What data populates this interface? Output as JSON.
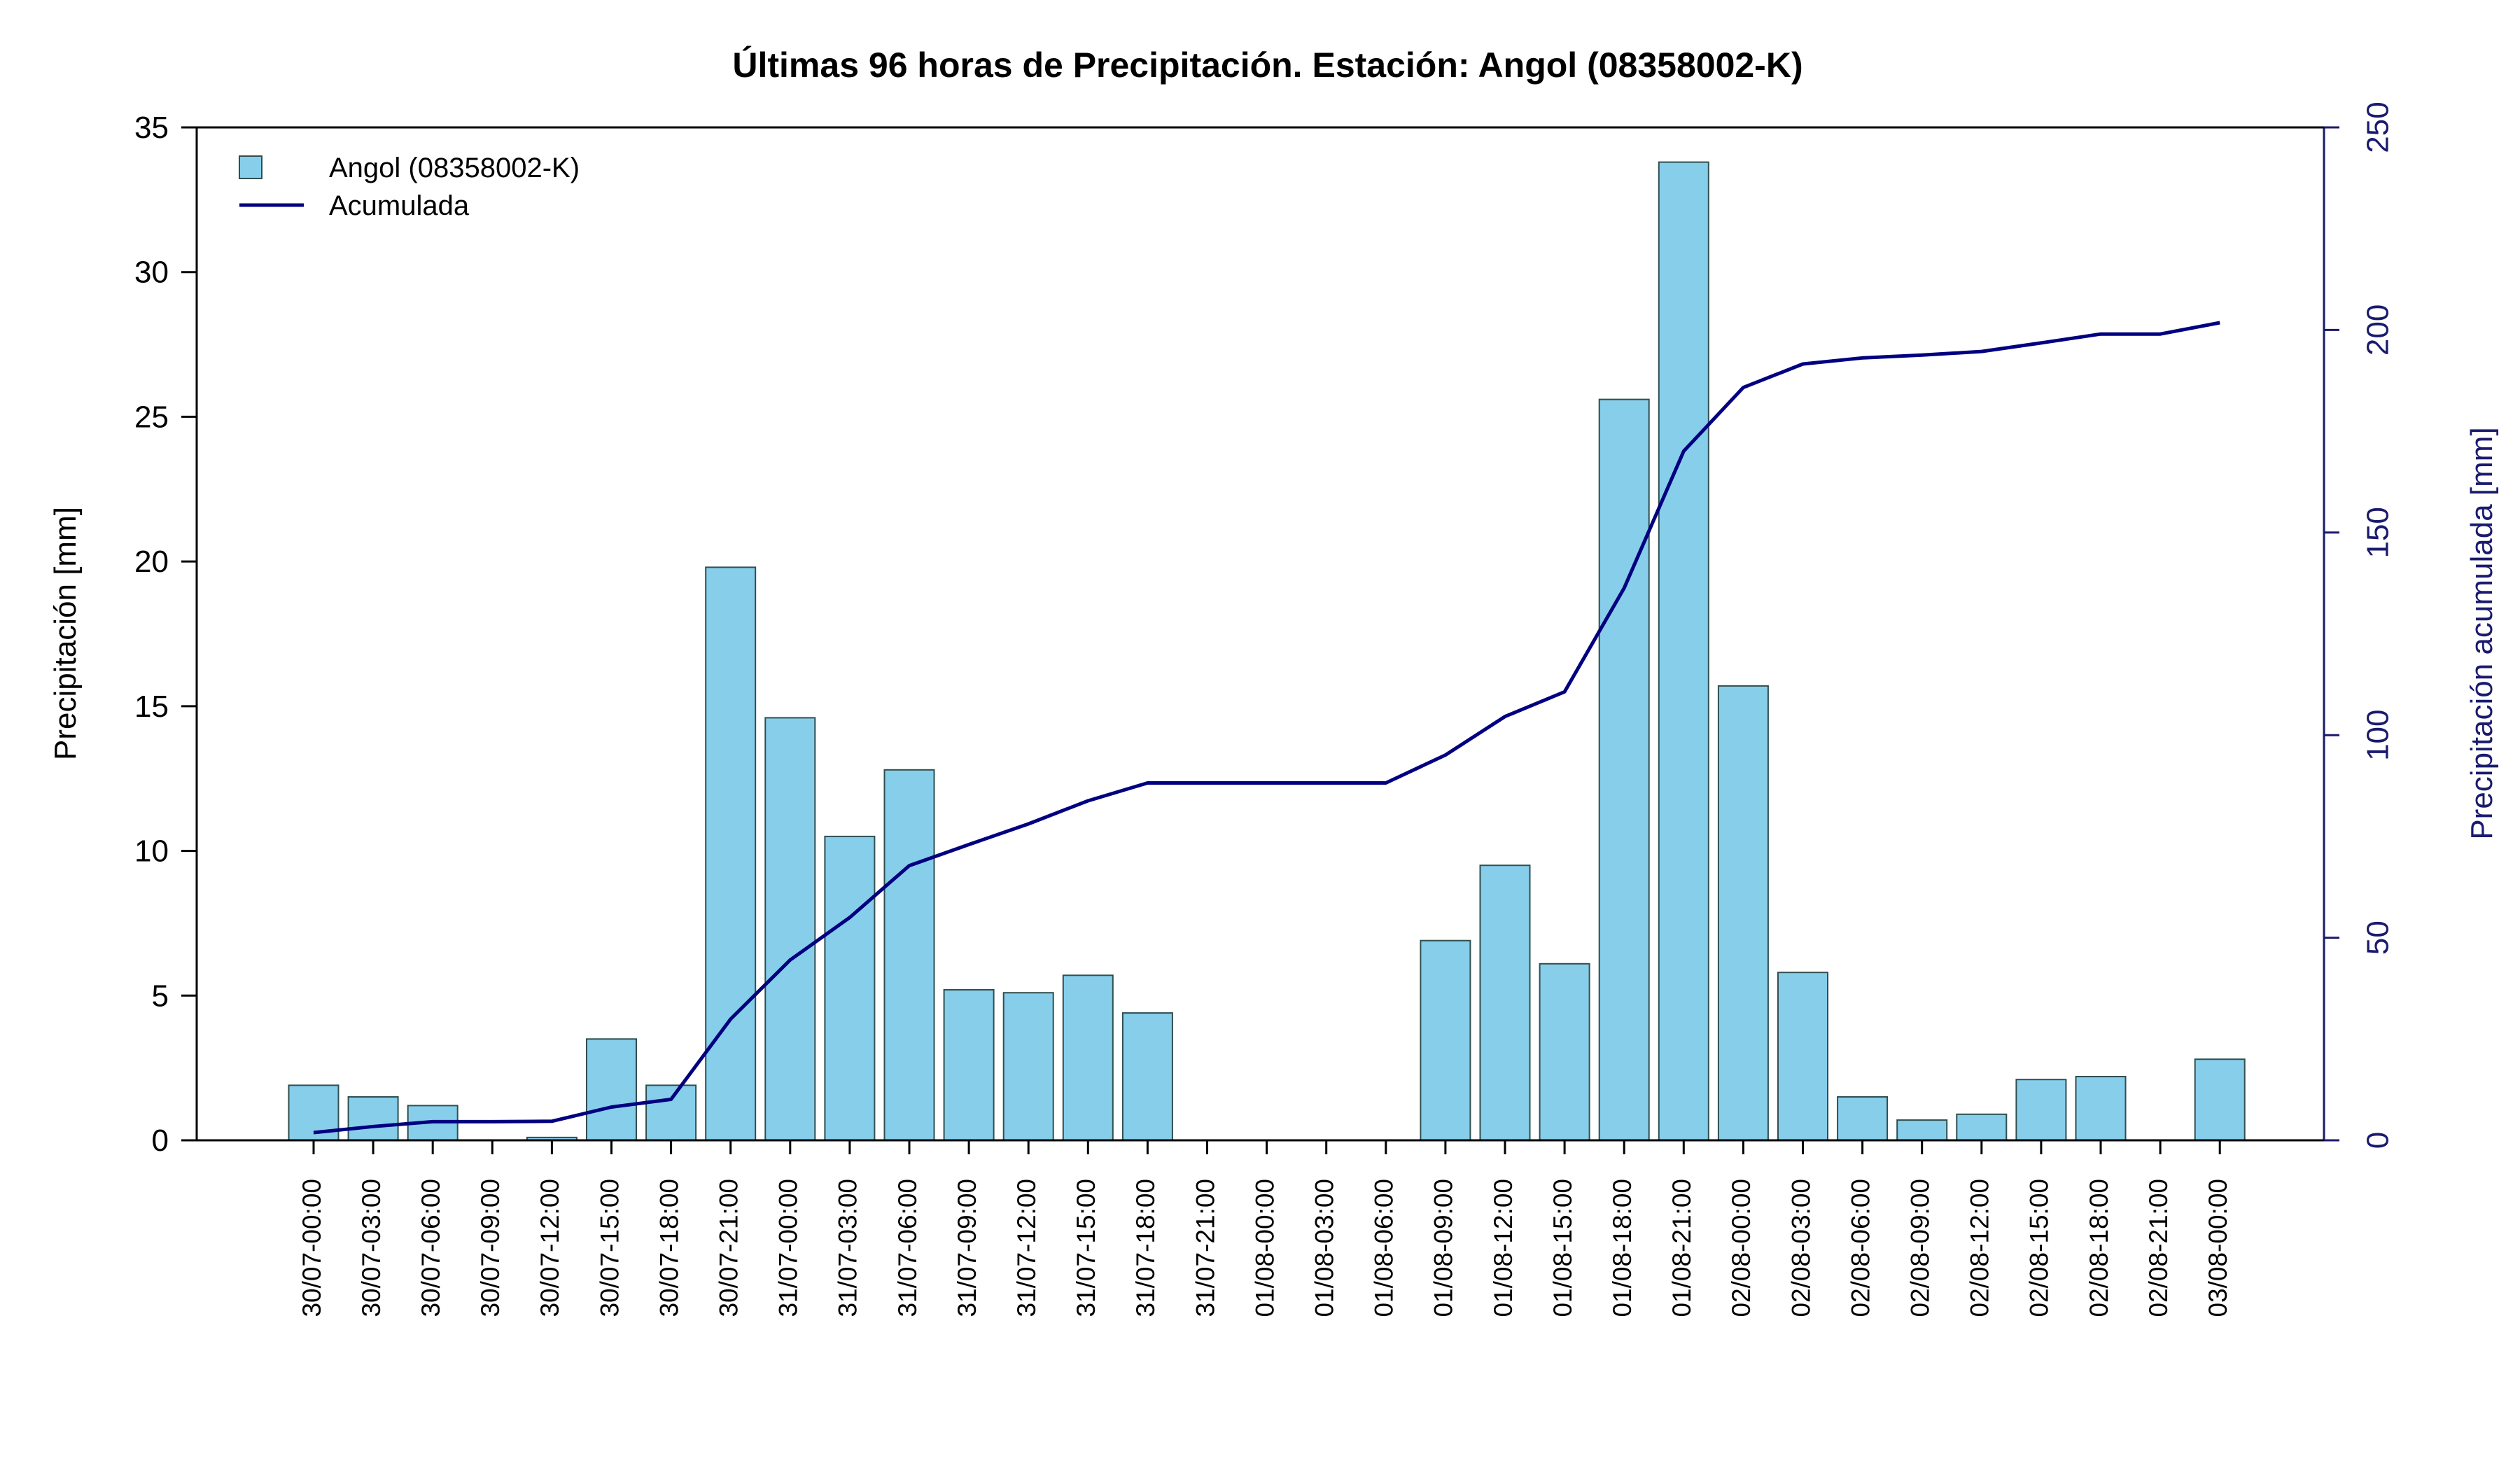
{
  "chart_data": {
    "type": "bar",
    "title": "Últimas 96 horas de Precipitación. Estación: Angol (08358002-K)",
    "ylabel": "Precipitación [mm]",
    "y2label": "Precipitación acumulada [mm]",
    "ylim": [
      0,
      35
    ],
    "y2lim": [
      0,
      250
    ],
    "yticks": [
      0,
      5,
      10,
      15,
      20,
      25,
      30,
      35
    ],
    "y2ticks": [
      0,
      50,
      100,
      150,
      200,
      250
    ],
    "legend_position": "top-left",
    "colors": {
      "bar": "#87ceeb",
      "bar_border": "#2f4f4f",
      "line": "#000080",
      "right_axis": "#1a1a6e"
    },
    "categories": [
      "30/07-00:00",
      "30/07-03:00",
      "30/07-06:00",
      "30/07-09:00",
      "30/07-12:00",
      "30/07-15:00",
      "30/07-18:00",
      "30/07-21:00",
      "31/07-00:00",
      "31/07-03:00",
      "31/07-06:00",
      "31/07-09:00",
      "31/07-12:00",
      "31/07-15:00",
      "31/07-18:00",
      "31/07-21:00",
      "01/08-00:00",
      "01/08-03:00",
      "01/08-06:00",
      "01/08-09:00",
      "01/08-12:00",
      "01/08-15:00",
      "01/08-18:00",
      "01/08-21:00",
      "02/08-00:00",
      "02/08-03:00",
      "02/08-06:00",
      "02/08-09:00",
      "02/08-12:00",
      "02/08-15:00",
      "02/08-18:00",
      "02/08-21:00",
      "03/08-00:00"
    ],
    "series": [
      {
        "name": "Angol (08358002-K)",
        "type": "bar",
        "axis": "left",
        "values": [
          1.9,
          1.5,
          1.2,
          0,
          0.1,
          3.5,
          1.9,
          19.8,
          14.6,
          10.5,
          12.8,
          5.2,
          5.1,
          5.7,
          4.4,
          0,
          0,
          0,
          0,
          6.9,
          9.5,
          6.1,
          25.6,
          33.8,
          15.7,
          5.8,
          1.5,
          0.7,
          0.9,
          2.1,
          2.2,
          0,
          2.8
        ]
      },
      {
        "name": "Acumulada",
        "type": "line",
        "axis": "right",
        "values": [
          1.9,
          3.4,
          4.6,
          4.6,
          4.7,
          8.2,
          10.1,
          29.9,
          44.5,
          55.0,
          67.8,
          73.0,
          78.1,
          83.8,
          88.2,
          88.2,
          88.2,
          88.2,
          88.2,
          95.1,
          104.6,
          110.7,
          136.3,
          170.1,
          185.8,
          191.6,
          193.1,
          193.8,
          194.7,
          196.8,
          199.0,
          199.0,
          201.8
        ]
      }
    ]
  }
}
